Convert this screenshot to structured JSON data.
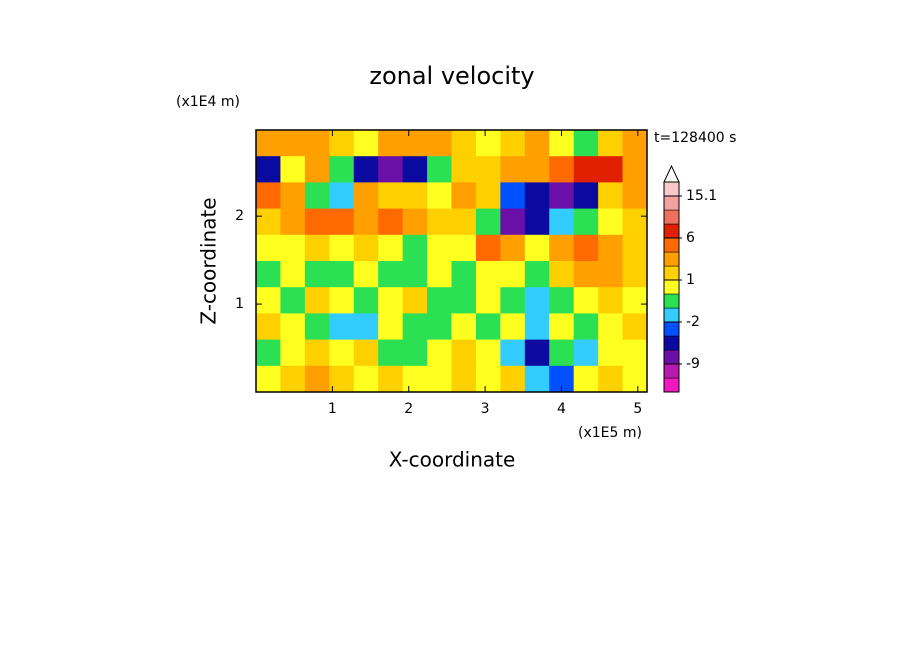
{
  "chart_data": {
    "type": "contour",
    "title": "zonal velocity",
    "x_label": "X-coordinate",
    "y_label": "Z-coordinate",
    "x_scale_label": "(x1E5 m)",
    "y_scale_label": "(x1E4 m)",
    "annotation": "t=128400 s",
    "xlim": [
      0,
      5.12
    ],
    "ylim": [
      0,
      2.98
    ],
    "xticks": [
      1,
      2,
      3,
      4,
      5
    ],
    "yticks": [
      1,
      2
    ],
    "z": [
      [
        2,
        3,
        2,
        1,
        0.5,
        2,
        3,
        2,
        1,
        0.5,
        1,
        2,
        0,
        -1,
        1,
        2
      ],
      [
        -6,
        0,
        2,
        -1,
        -6,
        -7,
        -6,
        -1,
        1,
        1,
        2,
        3,
        4,
        7,
        8,
        3
      ],
      [
        4,
        3,
        -1,
        -2,
        2,
        1,
        1,
        0,
        2,
        1,
        -4,
        -6,
        -8,
        -6,
        1,
        2
      ],
      [
        1,
        2,
        4,
        4,
        3,
        4,
        2,
        1,
        1,
        -1,
        -8,
        -6,
        -2,
        -1,
        0,
        1
      ],
      [
        0,
        0.5,
        1,
        0.5,
        1,
        0,
        -1,
        0,
        0.5,
        4,
        2,
        0,
        3,
        4,
        3,
        1
      ],
      [
        -1,
        0,
        -1,
        -1,
        0.5,
        -1,
        -1,
        0,
        -1,
        0,
        0.5,
        -1,
        1,
        3,
        2,
        1
      ],
      [
        0,
        -1,
        1,
        0.5,
        -1,
        0,
        1,
        -1,
        -1,
        0.5,
        -1,
        -2,
        -1,
        0,
        1,
        0.5
      ],
      [
        1,
        0,
        -1,
        -2,
        -2,
        0,
        -1,
        -1,
        0,
        -1,
        0,
        -2,
        0,
        -1,
        0,
        1
      ],
      [
        -1,
        0.5,
        1,
        0,
        1,
        -1,
        -1,
        0,
        1,
        0,
        -2,
        -6,
        -1,
        -2,
        0,
        0.5
      ],
      [
        0.5,
        1,
        2,
        1,
        0.5,
        1,
        0.5,
        0,
        1,
        0,
        1,
        -2,
        -4,
        0,
        1,
        0.5
      ]
    ],
    "levels": [
      -15,
      -12,
      -9,
      -6,
      -4,
      -2,
      -1,
      0,
      1,
      2,
      4,
      6,
      9,
      12,
      15.1,
      18
    ],
    "colors": [
      "#f018c0",
      "#b81ab0",
      "#6a10a8",
      "#0a0aa0",
      "#0050ff",
      "#33ccff",
      "#2be052",
      "#ffff20",
      "#ffd000",
      "#ffa000",
      "#ff6a00",
      "#e02000",
      "#f07060",
      "#f4a0a0",
      "#f8c8c8"
    ],
    "colorbar_ticks": [
      -9,
      -2,
      1,
      6,
      15.1
    ]
  }
}
